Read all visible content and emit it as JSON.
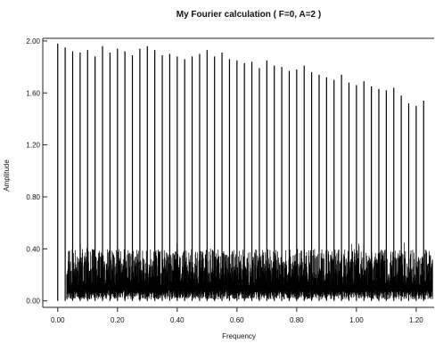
{
  "chart_data": {
    "type": "line",
    "title": "My Fourier calculation ( F=0, A=2 )",
    "xlabel": "Frequency",
    "ylabel": "Amplitude",
    "xlim": [
      -0.05,
      1.26
    ],
    "ylim": [
      -0.05,
      2.02
    ],
    "x_ticks": [
      0.0,
      0.2,
      0.4,
      0.6,
      0.8,
      1.0,
      1.2
    ],
    "x_tick_labels": [
      "0.00",
      "0.20",
      "0.40",
      "0.60",
      "0.80",
      "1.00",
      "1.20"
    ],
    "y_ticks": [
      0.0,
      0.4,
      0.8,
      1.2,
      1.6,
      2.0
    ],
    "y_tick_labels": [
      "0.00",
      "0.40",
      "0.80",
      "1.20",
      "1.60",
      "2.00"
    ],
    "grid": false,
    "legend": "none",
    "colors": {
      "series": "#000000",
      "axes": "#222222",
      "text": "#111111",
      "background": "#ffffff"
    },
    "series": [
      {
        "x": [
          0.0,
          0.025,
          0.05,
          0.075,
          0.1,
          0.125,
          0.15,
          0.175,
          0.2,
          0.225,
          0.25,
          0.275,
          0.3,
          0.325,
          0.35,
          0.375,
          0.4,
          0.425,
          0.45,
          0.475,
          0.5,
          0.525,
          0.55,
          0.575,
          0.6,
          0.625,
          0.65,
          0.675,
          0.7,
          0.725,
          0.75,
          0.775,
          0.8,
          0.825,
          0.85,
          0.875,
          0.9,
          0.925,
          0.95,
          0.975,
          1.0,
          1.025,
          1.05,
          1.075,
          1.1,
          1.125,
          1.15,
          1.175,
          1.2,
          1.225
        ],
        "values": [
          1.98,
          1.95,
          1.92,
          1.91,
          1.93,
          1.88,
          1.96,
          1.91,
          1.94,
          1.92,
          1.89,
          1.94,
          1.96,
          1.93,
          1.89,
          1.9,
          1.88,
          1.86,
          1.88,
          1.9,
          1.93,
          1.88,
          1.91,
          1.86,
          1.85,
          1.83,
          1.84,
          1.79,
          1.85,
          1.81,
          1.8,
          1.77,
          1.78,
          1.81,
          1.76,
          1.74,
          1.72,
          1.7,
          1.74,
          1.68,
          1.66,
          1.69,
          1.65,
          1.63,
          1.62,
          1.64,
          1.58,
          1.52,
          1.5,
          1.54
        ]
      }
    ]
  }
}
